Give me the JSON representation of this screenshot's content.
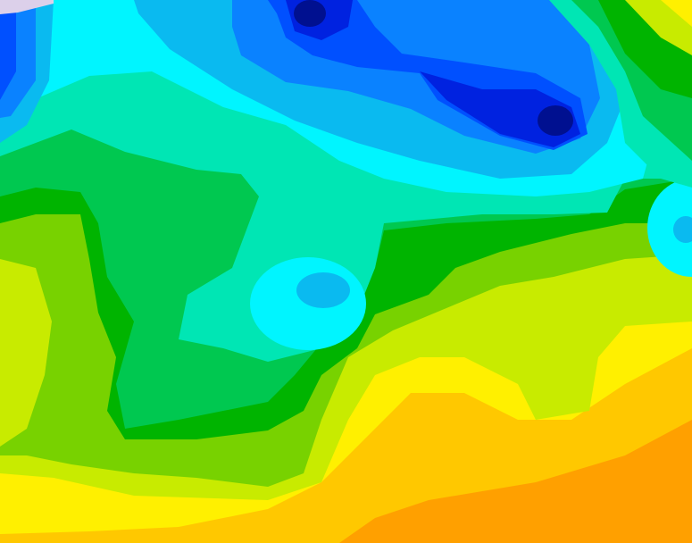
{
  "map": {
    "type": "filled-contour",
    "palette": {
      "orange": "#ffa000",
      "yellow_orange": "#ffc800",
      "yellow": "#fff000",
      "yellow_green": "#c8eb00",
      "light_green": "#78d200",
      "dark_green": "#00b400",
      "mid_green": "#00c850",
      "aqua": "#00e6b4",
      "cyan": "#00f5ff",
      "light_blue": "#0abaf0",
      "blue": "#0a82ff",
      "royal_blue": "#0050ff",
      "dark_blue": "#0022e0",
      "navy": "#001090",
      "lavender": "#dcd0ea"
    }
  }
}
